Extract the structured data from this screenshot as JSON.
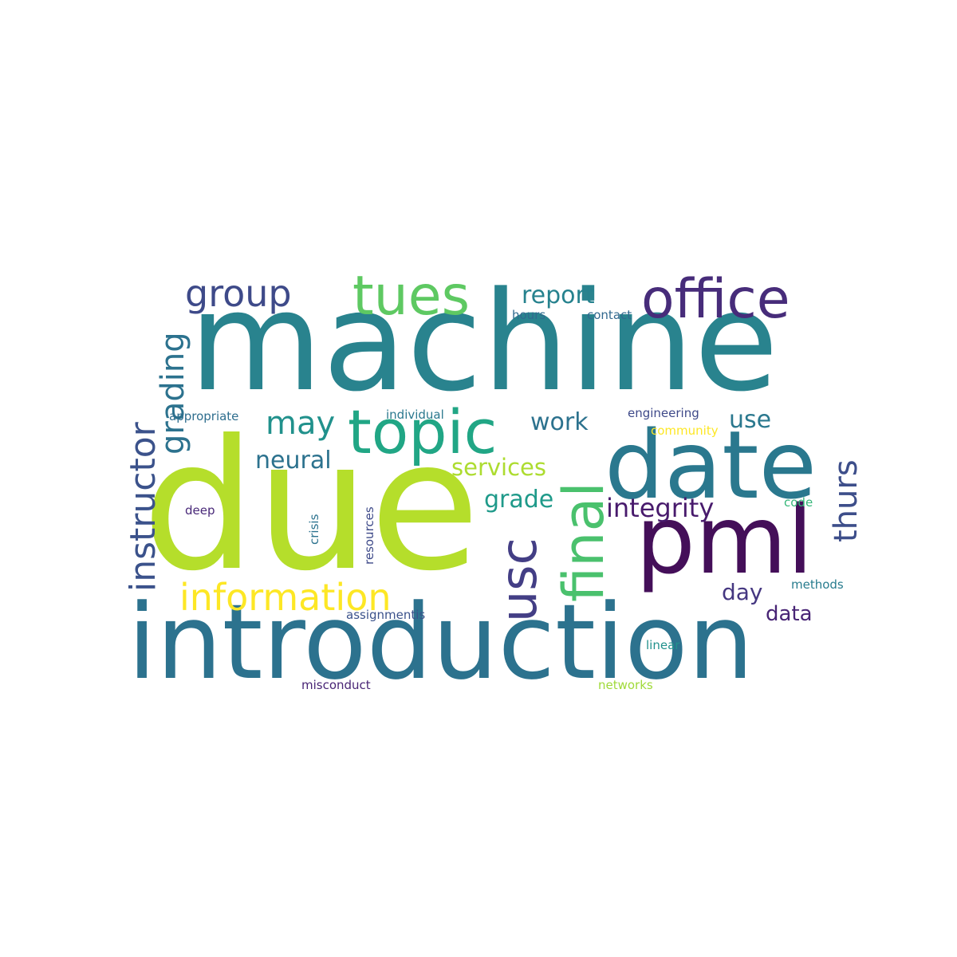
{
  "background": "#ffffff",
  "words": [
    {
      "text": "due",
      "color": "#b5de2b"
    },
    {
      "text": "machine",
      "color": "#29838e"
    },
    {
      "text": "introduction",
      "color": "#2c728e"
    },
    {
      "text": "date",
      "color": "#2a788e"
    },
    {
      "text": "pml",
      "color": "#440f59"
    },
    {
      "text": "topic",
      "color": "#21a685"
    },
    {
      "text": "office",
      "color": "#472c7a"
    },
    {
      "text": "tues",
      "color": "#5ec962"
    },
    {
      "text": "final",
      "color": "#4ac16d"
    },
    {
      "text": "usc",
      "color": "#433e85"
    },
    {
      "text": "information",
      "color": "#fde725"
    },
    {
      "text": "group",
      "color": "#3e4a89"
    },
    {
      "text": "instructor",
      "color": "#3b528b"
    },
    {
      "text": "grading",
      "color": "#2c728e"
    },
    {
      "text": "thurs",
      "color": "#3d4e8a"
    },
    {
      "text": "may",
      "color": "#21918c"
    },
    {
      "text": "integrity",
      "color": "#481a6c"
    },
    {
      "text": "report",
      "color": "#26828e"
    },
    {
      "text": "work",
      "color": "#2c728e"
    },
    {
      "text": "neural",
      "color": "#2c728e"
    },
    {
      "text": "use",
      "color": "#2a788e"
    },
    {
      "text": "services",
      "color": "#addc30"
    },
    {
      "text": "grade",
      "color": "#1f9a8a"
    },
    {
      "text": "day",
      "color": "#453781"
    },
    {
      "text": "data",
      "color": "#482475"
    },
    {
      "text": "appropriate",
      "color": "#2e6e8e"
    },
    {
      "text": "individual",
      "color": "#2a788e"
    },
    {
      "text": "engineering",
      "color": "#3e4989"
    },
    {
      "text": "community",
      "color": "#fde725"
    },
    {
      "text": "hours",
      "color": "#306a8e"
    },
    {
      "text": "contact",
      "color": "#31688e"
    },
    {
      "text": "deep",
      "color": "#482878"
    },
    {
      "text": "crisis",
      "color": "#2c728e"
    },
    {
      "text": "resources",
      "color": "#3e4a89"
    },
    {
      "text": "code",
      "color": "#35b779"
    },
    {
      "text": "methods",
      "color": "#287c8e"
    },
    {
      "text": "assignmentis",
      "color": "#3b528b"
    },
    {
      "text": "linear",
      "color": "#21918c"
    },
    {
      "text": "misconduct",
      "color": "#482475"
    },
    {
      "text": "networks",
      "color": "#a0da39"
    }
  ]
}
